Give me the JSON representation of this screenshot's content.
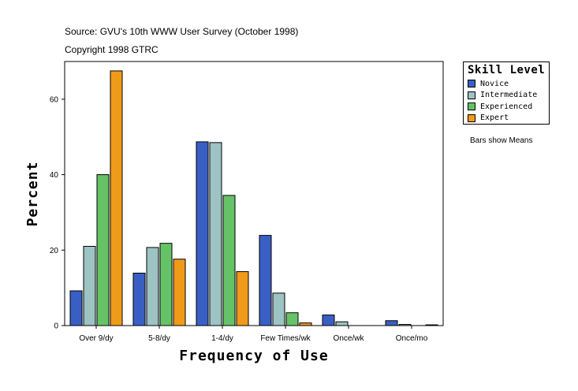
{
  "source_line": "Source: GVU's 10th WWW User Survey (October 1998)",
  "copyright_line": "Copyright 1998 GTRC",
  "note": "Bars show Means",
  "colors": {
    "Novice": "#3a5fc4",
    "Intermediate": "#9dc3c3",
    "Experienced": "#66c266",
    "Expert": "#f09a1a"
  },
  "chart_data": {
    "type": "bar",
    "xlabel": "Frequency of Use",
    "ylabel": "Percent",
    "ylim": [
      0,
      70
    ],
    "yticks": [
      0,
      20,
      40,
      60
    ],
    "categories": [
      "Over 9/dy",
      "5-8/dy",
      "1-4/dy",
      "Few Times/wk",
      "Once/wk",
      "Once/mo"
    ],
    "legend_title": "Skill Level",
    "legend_position": "top-right",
    "series": [
      {
        "name": "Novice",
        "values": [
          9.2,
          13.9,
          48.7,
          23.9,
          2.8,
          1.3
        ]
      },
      {
        "name": "Intermediate",
        "values": [
          21.0,
          20.7,
          48.5,
          8.6,
          1.0,
          0.3
        ]
      },
      {
        "name": "Experienced",
        "values": [
          40.0,
          21.8,
          34.5,
          3.4,
          0.0,
          0.0
        ]
      },
      {
        "name": "Expert",
        "values": [
          67.5,
          17.6,
          14.3,
          0.7,
          0.0,
          0.2
        ]
      }
    ]
  }
}
